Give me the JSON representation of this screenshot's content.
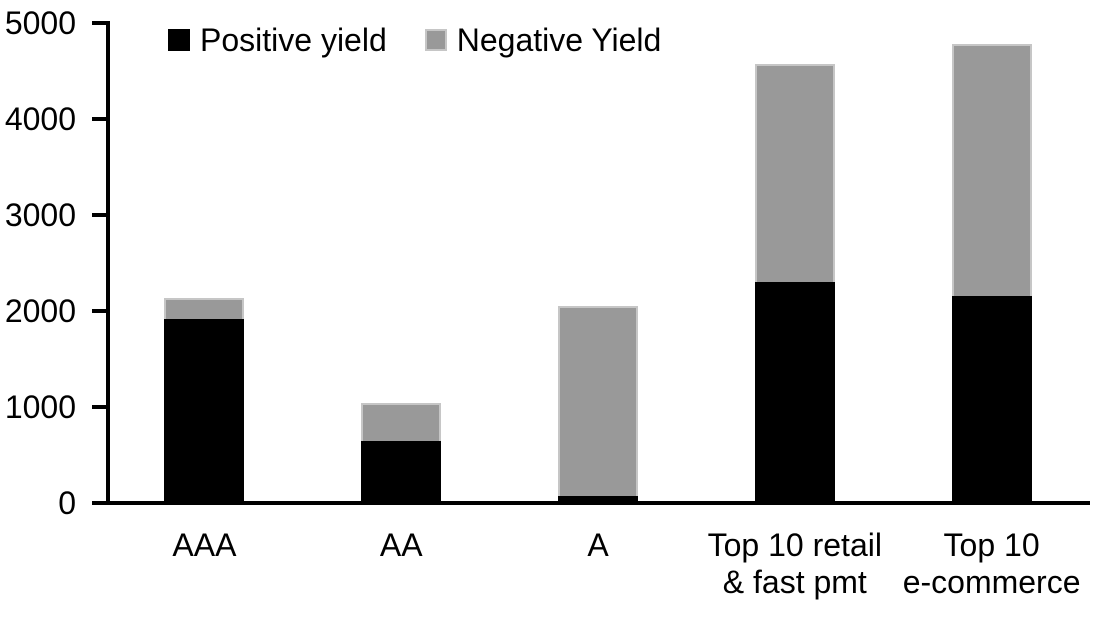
{
  "chart_data": {
    "type": "bar",
    "stacked": true,
    "title": "",
    "xlabel": "",
    "ylabel": "",
    "categories": [
      "AAA",
      "AA",
      "A",
      "Top 10 retail & fast pmt",
      "Top 10 e-commerce"
    ],
    "category_label_lines": [
      [
        "AAA"
      ],
      [
        "AA"
      ],
      [
        "A"
      ],
      [
        "Top 10 retail",
        "& fast pmt"
      ],
      [
        "Top 10",
        "e-commerce"
      ]
    ],
    "series": [
      {
        "name": "Positive yield",
        "color": "#000000",
        "values": [
          1900,
          620,
          50,
          2280,
          2140
        ]
      },
      {
        "name": "Negative Yield",
        "color": "#999999",
        "values": [
          210,
          400,
          1980,
          2270,
          2620
        ]
      }
    ],
    "totals": [
      2110,
      1020,
      2030,
      4550,
      4760
    ],
    "ylim": [
      0,
      5000
    ],
    "yticks": [
      0,
      1000,
      2000,
      3000,
      4000,
      5000
    ],
    "grid": false,
    "legend_position": "top"
  },
  "colors": {
    "positive": "#000000",
    "negative": "#999999",
    "axis": "#000000",
    "background": "#ffffff",
    "bar_edge": "#c6c6c6"
  }
}
